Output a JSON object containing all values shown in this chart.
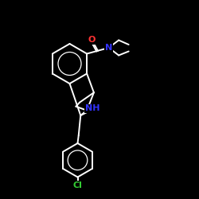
{
  "background_color": "#000000",
  "bond_color": "#ffffff",
  "atom_colors": {
    "O": "#ff3333",
    "N_amide": "#3333ff",
    "N_amine": "#3333ff",
    "Cl": "#33cc33"
  },
  "figsize": [
    2.5,
    2.5
  ],
  "dpi": 100
}
